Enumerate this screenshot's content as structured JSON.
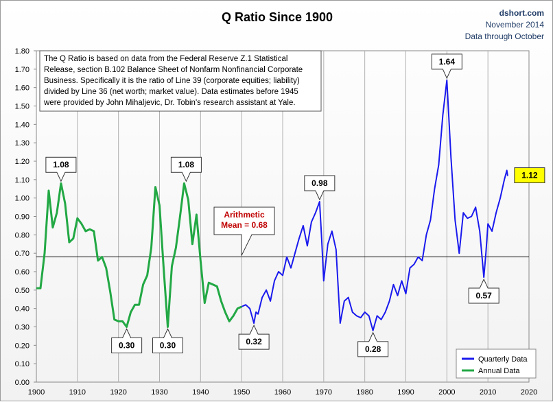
{
  "chart_data": {
    "type": "line",
    "title": "Q Ratio Since 1900",
    "source": [
      "dshort.com",
      "November 2014",
      "Data through October"
    ],
    "xlabel": "",
    "ylabel": "",
    "xlim": [
      1900,
      2020
    ],
    "ylim": [
      0,
      1.8
    ],
    "x_ticks": [
      "1900",
      "1910",
      "1920",
      "1930",
      "1940",
      "1950",
      "1960",
      "1970",
      "1980",
      "1990",
      "2000",
      "2010",
      "2020"
    ],
    "y_ticks": [
      "0.00",
      "0.10",
      "0.20",
      "0.30",
      "0.40",
      "0.50",
      "0.60",
      "0.70",
      "0.80",
      "0.90",
      "1.00",
      "1.10",
      "1.20",
      "1.30",
      "1.40",
      "1.50",
      "1.60",
      "1.70",
      "1.80"
    ],
    "grid": "vertical",
    "legend_position": "bottom-right",
    "series": [
      {
        "name": "Annual Data",
        "color": "#22a844",
        "points": [
          [
            1900,
            0.51
          ],
          [
            1901,
            0.51
          ],
          [
            1902,
            0.7
          ],
          [
            1903,
            1.04
          ],
          [
            1904,
            0.84
          ],
          [
            1905,
            0.92
          ],
          [
            1906,
            1.08
          ],
          [
            1907,
            0.97
          ],
          [
            1908,
            0.76
          ],
          [
            1909,
            0.78
          ],
          [
            1910,
            0.89
          ],
          [
            1911,
            0.86
          ],
          [
            1912,
            0.82
          ],
          [
            1913,
            0.83
          ],
          [
            1914,
            0.82
          ],
          [
            1915,
            0.66
          ],
          [
            1916,
            0.68
          ],
          [
            1917,
            0.62
          ],
          [
            1918,
            0.49
          ],
          [
            1919,
            0.34
          ],
          [
            1920,
            0.33
          ],
          [
            1921,
            0.33
          ],
          [
            1922,
            0.3
          ],
          [
            1923,
            0.38
          ],
          [
            1924,
            0.42
          ],
          [
            1925,
            0.42
          ],
          [
            1926,
            0.53
          ],
          [
            1927,
            0.58
          ],
          [
            1928,
            0.73
          ],
          [
            1929,
            1.06
          ],
          [
            1930,
            0.96
          ],
          [
            1931,
            0.62
          ],
          [
            1932,
            0.3
          ],
          [
            1933,
            0.63
          ],
          [
            1934,
            0.73
          ],
          [
            1935,
            0.9
          ],
          [
            1936,
            1.08
          ],
          [
            1937,
            0.99
          ],
          [
            1938,
            0.75
          ],
          [
            1939,
            0.91
          ],
          [
            1940,
            0.66
          ],
          [
            1941,
            0.43
          ],
          [
            1942,
            0.54
          ],
          [
            1943,
            0.53
          ],
          [
            1944,
            0.52
          ],
          [
            1945,
            0.44
          ],
          [
            1946,
            0.38
          ],
          [
            1947,
            0.33
          ],
          [
            1948,
            0.36
          ],
          [
            1949,
            0.4
          ],
          [
            1950,
            0.41
          ]
        ]
      },
      {
        "name": "Quarterly Data",
        "color": "#1a1aee",
        "points": [
          [
            1950,
            0.41
          ],
          [
            1951,
            0.42
          ],
          [
            1952,
            0.4
          ],
          [
            1953,
            0.32
          ],
          [
            1953.5,
            0.38
          ],
          [
            1954,
            0.37
          ],
          [
            1955,
            0.46
          ],
          [
            1956,
            0.5
          ],
          [
            1957,
            0.44
          ],
          [
            1958,
            0.55
          ],
          [
            1959,
            0.6
          ],
          [
            1960,
            0.58
          ],
          [
            1961,
            0.68
          ],
          [
            1962,
            0.62
          ],
          [
            1963,
            0.7
          ],
          [
            1964,
            0.78
          ],
          [
            1965,
            0.85
          ],
          [
            1966,
            0.74
          ],
          [
            1967,
            0.87
          ],
          [
            1968,
            0.92
          ],
          [
            1969,
            0.98
          ],
          [
            1969.5,
            0.78
          ],
          [
            1970,
            0.55
          ],
          [
            1971,
            0.75
          ],
          [
            1972,
            0.82
          ],
          [
            1973,
            0.72
          ],
          [
            1974,
            0.32
          ],
          [
            1975,
            0.44
          ],
          [
            1976,
            0.46
          ],
          [
            1977,
            0.38
          ],
          [
            1978,
            0.36
          ],
          [
            1979,
            0.35
          ],
          [
            1980,
            0.38
          ],
          [
            1981,
            0.36
          ],
          [
            1982,
            0.28
          ],
          [
            1983,
            0.36
          ],
          [
            1984,
            0.34
          ],
          [
            1985,
            0.38
          ],
          [
            1986,
            0.44
          ],
          [
            1987,
            0.53
          ],
          [
            1988,
            0.47
          ],
          [
            1989,
            0.55
          ],
          [
            1990,
            0.48
          ],
          [
            1991,
            0.62
          ],
          [
            1992,
            0.64
          ],
          [
            1993,
            0.68
          ],
          [
            1994,
            0.66
          ],
          [
            1995,
            0.8
          ],
          [
            1996,
            0.88
          ],
          [
            1997,
            1.05
          ],
          [
            1998,
            1.18
          ],
          [
            1999,
            1.45
          ],
          [
            2000,
            1.64
          ],
          [
            2001,
            1.22
          ],
          [
            2002,
            0.88
          ],
          [
            2003,
            0.7
          ],
          [
            2004,
            0.92
          ],
          [
            2005,
            0.89
          ],
          [
            2006,
            0.9
          ],
          [
            2007,
            0.95
          ],
          [
            2008,
            0.82
          ],
          [
            2009,
            0.57
          ],
          [
            2009.5,
            0.7
          ],
          [
            2010,
            0.86
          ],
          [
            2011,
            0.82
          ],
          [
            2012,
            0.92
          ],
          [
            2013,
            1.0
          ],
          [
            2014,
            1.1
          ],
          [
            2014.6,
            1.15
          ],
          [
            2014.8,
            1.12
          ]
        ]
      }
    ],
    "mean": {
      "value": 0.68,
      "label_lines": [
        "Arithmetic",
        "Mean = 0.68"
      ]
    },
    "callouts": [
      {
        "label": "1.08",
        "x": 1906,
        "y": 1.08,
        "pos": "above"
      },
      {
        "label": "1.08",
        "x": 1936.5,
        "y": 1.08,
        "pos": "above"
      },
      {
        "label": "0.98",
        "x": 1969,
        "y": 0.98,
        "pos": "above"
      },
      {
        "label": "1.64",
        "x": 2000,
        "y": 1.64,
        "pos": "above"
      },
      {
        "label": "0.30",
        "x": 1922,
        "y": 0.3,
        "pos": "below"
      },
      {
        "label": "0.30",
        "x": 1932,
        "y": 0.3,
        "pos": "below"
      },
      {
        "label": "0.32",
        "x": 1953,
        "y": 0.32,
        "pos": "below"
      },
      {
        "label": "0.28",
        "x": 1982,
        "y": 0.28,
        "pos": "below"
      },
      {
        "label": "0.57",
        "x": 2009,
        "y": 0.57,
        "pos": "below"
      }
    ],
    "latest_label": {
      "label": "1.12",
      "x": 2014.8,
      "y": 1.12,
      "color": "#ffff00"
    },
    "note_lines": [
      "The Q Ratio is based on data from the Federal Reserve Z.1 Statistical",
      "Release, section B.102 Balance Sheet of Nonfarm Nonfinancial Corporate",
      "Business. Specifically it is the ratio of Line 39 (corporate equities; liability)",
      "divided by Line 36 (net worth; market value).  Data estimates before 1945",
      "were provided by John Mihaljevic, Dr. Tobin's research assistant at Yale."
    ]
  }
}
